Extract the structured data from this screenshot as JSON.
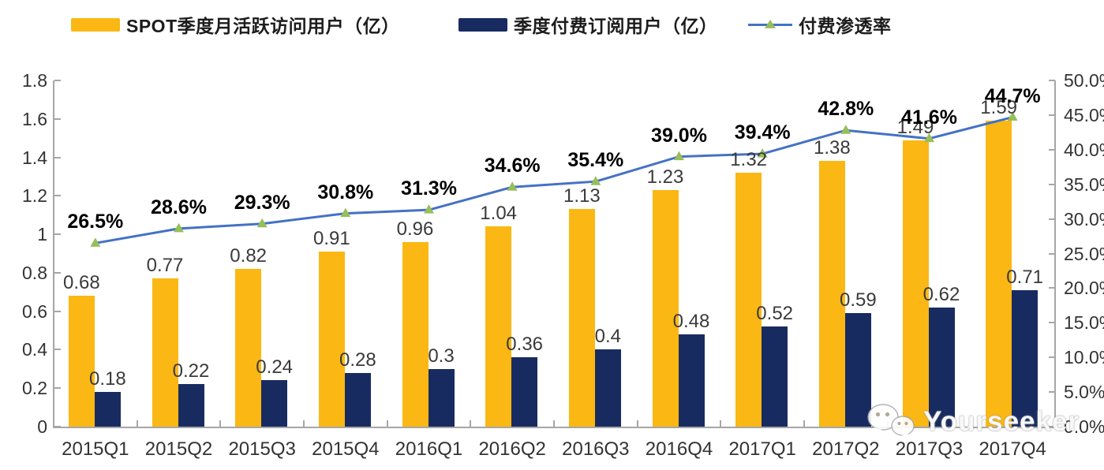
{
  "legend": {
    "items": [
      {
        "label": "SPOT季度月活跃访问用户（亿）",
        "type": "bar",
        "swatch_color": "#fbb713"
      },
      {
        "label": "季度付费订阅用户（亿）",
        "type": "bar",
        "swatch_color": "#182b61"
      },
      {
        "label": "付费渗透率",
        "type": "line",
        "line_color": "#4472c4",
        "marker_color": "#97be5a"
      }
    ]
  },
  "watermark": {
    "text": "Yourseeker",
    "icon": "wechat-icon"
  },
  "colors": {
    "mau_bar": "#fbb713",
    "sub_bar": "#182b61",
    "penetration_line": "#4472c4",
    "penetration_marker": "#97be5a",
    "axis": "#a6a6a6"
  },
  "chart_data": {
    "type": "bar",
    "subtype": "combo-bar-line",
    "title": "",
    "categories": [
      "2015Q1",
      "2015Q2",
      "2015Q3",
      "2015Q4",
      "2016Q1",
      "2016Q2",
      "2016Q3",
      "2016Q4",
      "2017Q1",
      "2017Q2",
      "2017Q3",
      "2017Q4"
    ],
    "series": [
      {
        "name": "SPOT季度月活跃访问用户（亿）",
        "type": "bar",
        "axis": "left",
        "color": "#fbb713",
        "values": [
          0.68,
          0.77,
          0.82,
          0.91,
          0.96,
          1.04,
          1.13,
          1.23,
          1.32,
          1.38,
          1.49,
          1.59
        ],
        "labels": [
          "0.68",
          "0.77",
          "0.82",
          "0.91",
          "0.96",
          "1.04",
          "1.13",
          "1.23",
          "1.32",
          "1.38",
          "1.49",
          "1.59"
        ]
      },
      {
        "name": "季度付费订阅用户（亿）",
        "type": "bar",
        "axis": "left",
        "color": "#182b61",
        "values": [
          0.18,
          0.22,
          0.24,
          0.28,
          0.3,
          0.36,
          0.4,
          0.48,
          0.52,
          0.59,
          0.62,
          0.71
        ],
        "labels": [
          "0.18",
          "0.22",
          "0.24",
          "0.28",
          "0.3",
          "0.36",
          "0.4",
          "0.48",
          "0.52",
          "0.59",
          "0.62",
          "0.71"
        ]
      },
      {
        "name": "付费渗透率",
        "type": "line",
        "axis": "right",
        "color": "#4472c4",
        "marker": "triangle",
        "marker_color": "#97be5a",
        "values": [
          26.5,
          28.6,
          29.3,
          30.8,
          31.3,
          34.6,
          35.4,
          39.0,
          39.4,
          42.8,
          41.6,
          44.7
        ],
        "labels": [
          "26.5%",
          "28.6%",
          "29.3%",
          "30.8%",
          "31.3%",
          "34.6%",
          "35.4%",
          "39.0%",
          "39.4%",
          "42.8%",
          "41.6%",
          "44.7%"
        ]
      }
    ],
    "left_axis": {
      "min": 0,
      "max": 1.8,
      "step": 0.2,
      "tick_labels": [
        "0",
        "0.2",
        "0.4",
        "0.6",
        "0.8",
        "1",
        "1.2",
        "1.4",
        "1.6",
        "1.8"
      ]
    },
    "right_axis": {
      "min": 0,
      "max": 50,
      "step": 5,
      "tick_labels": [
        "0.0%",
        "5.0%",
        "10.0%",
        "15.0%",
        "20.0%",
        "25.0%",
        "30.0%",
        "35.0%",
        "40.0%",
        "45.0%",
        "50.0%"
      ]
    },
    "grid": false,
    "legend_position": "top"
  }
}
